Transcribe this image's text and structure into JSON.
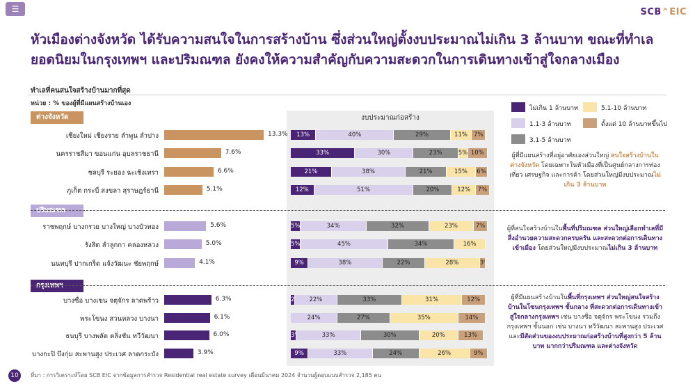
{
  "menu_icon": "hamburger-icon",
  "logo": {
    "scb": "SCB",
    "eic": "EIC",
    "icon": "house-roof-icon"
  },
  "title_line1": "หัวเมืองต่างจังหวัด ได้รับความสนใจในการสร้างบ้าน ซึ่งส่วนใหญ่ตั้งงบประมาณไม่เกิน 3 ล้านบาท ขณะที่ทำเล",
  "title_line2": "ยอดนิยมในกรุงเทพฯ และปริมณฑล ยังคงให้ความสำคัญกับความสะดวกในการเดินทางเข้าสู่ใจกลางเมือง",
  "subtitle": "ทำเลที่คนสนใจสร้างบ้านมากที่สุด",
  "unit": "หน่วย : % ของผู้ที่มีแผนสร้างบ้านเอง",
  "budget_header": "งบประมาณก่อสร้าง",
  "colors": {
    "group1": "#c9945f",
    "group2": "#b9a9d9",
    "group3": "#4a2575"
  },
  "chart_data": [
    {
      "type": "bar",
      "orientation": "horizontal",
      "groups": [
        "ต่างจังหวัด",
        "ปริมณฑล",
        "กรุงเทพฯ"
      ],
      "categories": [
        "เชียงใหม่ เชียงราย ลำพูน ลำปาง",
        "นครราชสีมา ขอนแก่น อุบลราชธานี",
        "ชลบุรี ระยอง ฉะเชิงเทรา",
        "ภูเก็ต กระบี่ สงขลา สุราษฎร์ธานี",
        "ราชพฤกษ์ บางกรวย บางใหญ่ บางบัวทอง",
        "รังสิต ลำลูกกา คลองหลวง",
        "นนทบุรี ปากเกร็ด แจ้งวัฒนะ ชัยพฤกษ์",
        "บางซื่อ บางเขน จตุจักร ลาดพร้าว",
        "พระโขนง สวนหลวง บางนา",
        "ธนบุรี บางพลัด ตลิ่งชัน ทวีวัฒนา",
        "บางกะปิ บึงกุ่ม สะพานสูง ประเวศ ลาดกระบัง"
      ],
      "category_group": [
        0,
        0,
        0,
        0,
        1,
        1,
        1,
        2,
        2,
        2,
        2
      ],
      "values": [
        13.3,
        7.6,
        6.6,
        5.1,
        5.6,
        5.0,
        4.1,
        6.3,
        6.1,
        6.0,
        3.9
      ],
      "value_labels": [
        "13.3%",
        "7.6%",
        "6.6%",
        "5.1%",
        "5.6%",
        "5.0%",
        "4.1%",
        "6.3%",
        "6.1%",
        "6.0%",
        "3.9%"
      ],
      "xlim": [
        0,
        13.3
      ]
    },
    {
      "type": "bar",
      "orientation": "horizontal",
      "stacked": true,
      "title": "งบประมาณก่อสร้าง",
      "series": [
        {
          "name": "ไม่เกิน 1 ล้านบาท",
          "color": "#4a2575",
          "values": [
            13,
            33,
            21,
            12,
            5,
            5,
            9,
            2,
            0,
            3,
            9
          ],
          "labels": [
            "13%",
            "33%",
            "21%",
            "12%",
            "5%",
            "5%",
            "9%",
            "2%",
            "",
            "3%",
            "9%"
          ]
        },
        {
          "name": "1.1-3 ล้านบาท",
          "color": "#d9d0ec",
          "values": [
            40,
            30,
            38,
            51,
            34,
            45,
            38,
            22,
            24,
            33,
            33
          ],
          "labels": [
            "40%",
            "30%",
            "38%",
            "51%",
            "34%",
            "45%",
            "38%",
            "22%",
            "24%",
            "33%",
            "33%"
          ]
        },
        {
          "name": "3.1-5 ล้านบาท",
          "color": "#8c8c8c",
          "values": [
            29,
            23,
            21,
            20,
            32,
            34,
            22,
            33,
            27,
            30,
            24
          ],
          "labels": [
            "29%",
            "23%",
            "21%",
            "20%",
            "32%",
            "34%",
            "22%",
            "33%",
            "27%",
            "30%",
            "24%"
          ]
        },
        {
          "name": "5.1-10 ล้านบาท",
          "color": "#fbe4a8",
          "values": [
            11,
            5,
            15,
            12,
            23,
            16,
            28,
            31,
            35,
            20,
            26
          ],
          "labels": [
            "11%",
            "5%",
            "15%",
            "12%",
            "23%",
            "16%",
            "28%",
            "31%",
            "35%",
            "20%",
            "26%"
          ]
        },
        {
          "name": "ตั้งแต่ 10 ล้านบาทขึ้นไป",
          "color": "#c9a07a",
          "values": [
            7,
            10,
            6,
            7,
            7,
            0,
            3,
            12,
            14,
            13,
            9
          ],
          "labels": [
            "7%",
            "10%",
            "6%",
            "7%",
            "7%",
            "",
            "3%",
            "12%",
            "14%",
            "13%",
            "9%"
          ]
        }
      ],
      "xlim": [
        0,
        100
      ]
    }
  ],
  "notes": [
    {
      "parts": [
        {
          "t": "ผู้ที่มีแผนสร้างที่อยู่อาศัยเองส่วนใหญ่ ",
          "s": ""
        },
        {
          "t": "สนใจสร้างบ้านในต่างจังหวัด",
          "s": "gold"
        },
        {
          "t": " โดยเฉพาะในหัวเมืองที่เป็นศูนย์กลางการท่องเที่ยว เศรษฐกิจ และการค้า โดยส่วนใหญ่มีงบประมาณ",
          "s": ""
        },
        {
          "t": "ไม่เกิน 3 ล้านบาท",
          "s": "gold"
        }
      ]
    },
    {
      "parts": [
        {
          "t": "ผู้ที่สนใจสร้างบ้านใน",
          "s": ""
        },
        {
          "t": "พื้นที่ปริมณฑล ส่วนใหญ่เลือกทำเลที่มีสิ่งอำนวยความสะดวกครบครัน และสะดวกต่อการเดินทางเข้าเมือง",
          "s": "purple"
        },
        {
          "t": " โดยส่วนใหญ่มีงบประมาณ",
          "s": ""
        },
        {
          "t": "ไม่เกิน 3 ล้านบาท",
          "s": "purple"
        }
      ]
    },
    {
      "parts": [
        {
          "t": "ผู้ที่มีแผนสร้างบ้านใน",
          "s": ""
        },
        {
          "t": "พื้นที่กรุงเทพฯ ส่วนใหญ่สนใจสร้างบ้านในโซนกรุงเทพฯ ชั้นกลาง ที่สะดวกต่อการเดินทางเข้าสู่ใจกลางกรุงเทพฯ",
          "s": "purple"
        },
        {
          "t": " เช่น บางซื่อ จตุจักร พระโขนง รวมถึงกรุงเทพฯ ชั้นนอก เช่น บางนา ทวีวัฒนา สะพานสูง ประเวศ และ",
          "s": ""
        },
        {
          "t": "มีสัดส่วนของงบประมาณก่อสร้างบ้านที่สูงกว่า 5 ล้านบาท มากกว่าปริมณฑล และต่างจังหวัด",
          "s": "purple"
        }
      ]
    }
  ],
  "page_number": "10",
  "source": "ที่มา : การวิเคราะห์โดย SCB EIC จากข้อมูลการสำรวจ Residential real estate survey เดือนมีนาคม 2024 จำนวนผู้ตอบแบบสำรวจ 2,185 คน"
}
